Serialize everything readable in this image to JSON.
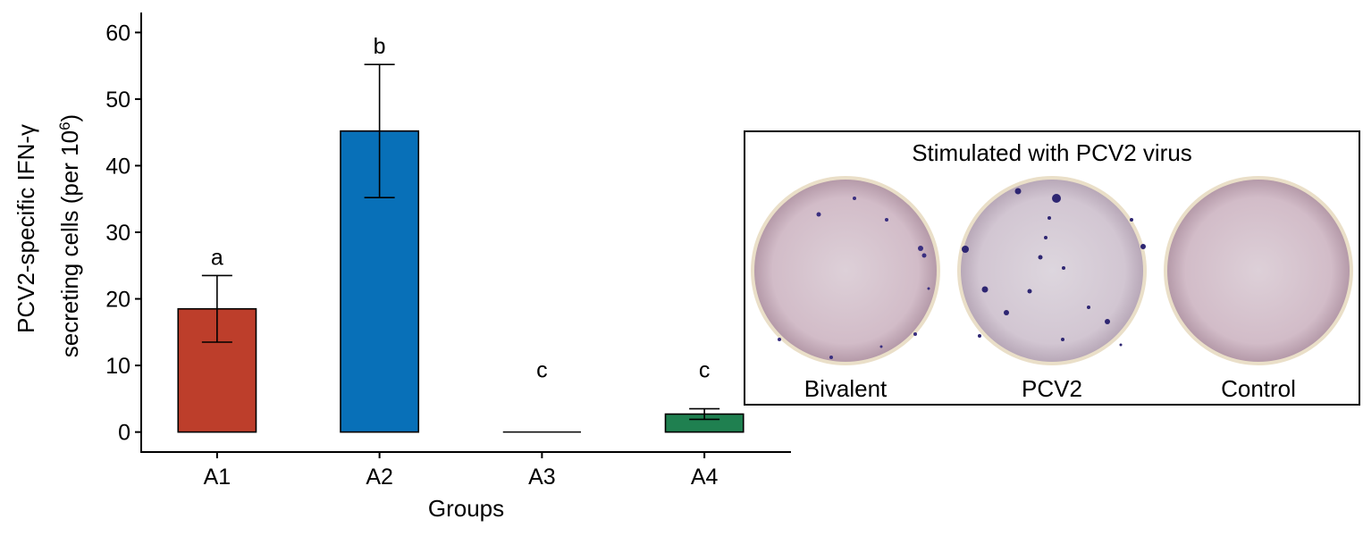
{
  "chart_data": {
    "type": "bar",
    "xlabel": "Groups",
    "ylabel_line1": "PCV2-specific IFN-γ",
    "ylabel_line2_prefix": "secreting cells (per 10",
    "ylabel_line2_sup": "6",
    "ylabel_line2_suffix": ")",
    "ylim": [
      -3,
      63
    ],
    "yticks": [
      0,
      10,
      20,
      30,
      40,
      50,
      60
    ],
    "categories": [
      "A1",
      "A2",
      "A3",
      "A4"
    ],
    "values": [
      18.5,
      45.2,
      0,
      2.7
    ],
    "errors": [
      5.0,
      10.0,
      0,
      0.8
    ],
    "significance": [
      "a",
      "b",
      "c",
      "c"
    ],
    "colors": [
      "#bd3e2b",
      "#0870b8",
      "#1f8050",
      "#1f8050"
    ],
    "grid": false
  },
  "inset": {
    "title": "Stimulated with PCV2 virus",
    "wells": [
      {
        "label": "Bivalent",
        "icon": "elispot-well-icon"
      },
      {
        "label": "PCV2",
        "icon": "elispot-well-icon"
      },
      {
        "label": "Control",
        "icon": "elispot-well-icon"
      }
    ]
  }
}
